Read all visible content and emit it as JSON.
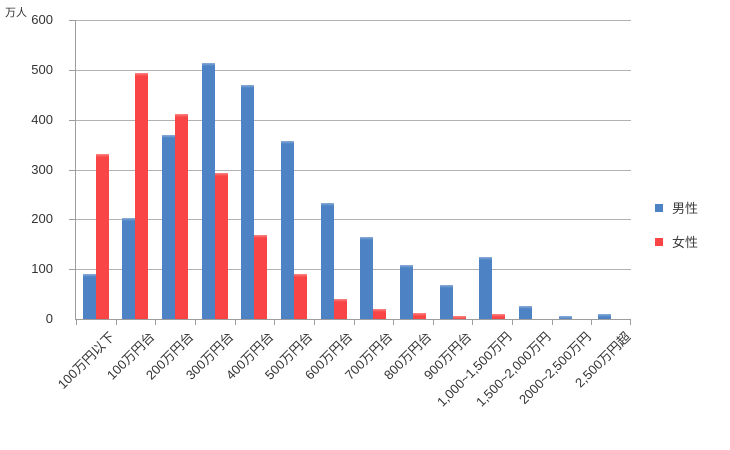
{
  "chart_data": {
    "type": "bar",
    "title": "",
    "unit_label": "万人",
    "xlabel": "",
    "ylabel": "万人",
    "ylim": [
      0,
      600
    ],
    "ytick_interval": 100,
    "ytick_labels": [
      "0",
      "100",
      "200",
      "300",
      "400",
      "500",
      "600"
    ],
    "grid": true,
    "legend_position": "right",
    "categories": [
      "100万円以下",
      "100万円台",
      "200万円台",
      "300万円台",
      "400万円台",
      "500万円台",
      "600万円台",
      "700万円台",
      "800万円台",
      "900万円台",
      "1,000~1,500万円",
      "1,500~2,000万円",
      "2000~2,500万円",
      "2,500万円超"
    ],
    "series": [
      {
        "name": "男性",
        "color": "#4d82c4",
        "values": [
          90,
          203,
          370,
          513,
          470,
          357,
          232,
          164,
          109,
          68,
          124,
          26,
          7,
          11
        ]
      },
      {
        "name": "女性",
        "color": "#f94545",
        "values": [
          332,
          493,
          412,
          293,
          168,
          91,
          40,
          21,
          12,
          7,
          11,
          0,
          0,
          0
        ]
      }
    ],
    "colors": {
      "gridline": "#b2b2b2",
      "axis": "#9d9d9d",
      "text": "#333333"
    }
  }
}
